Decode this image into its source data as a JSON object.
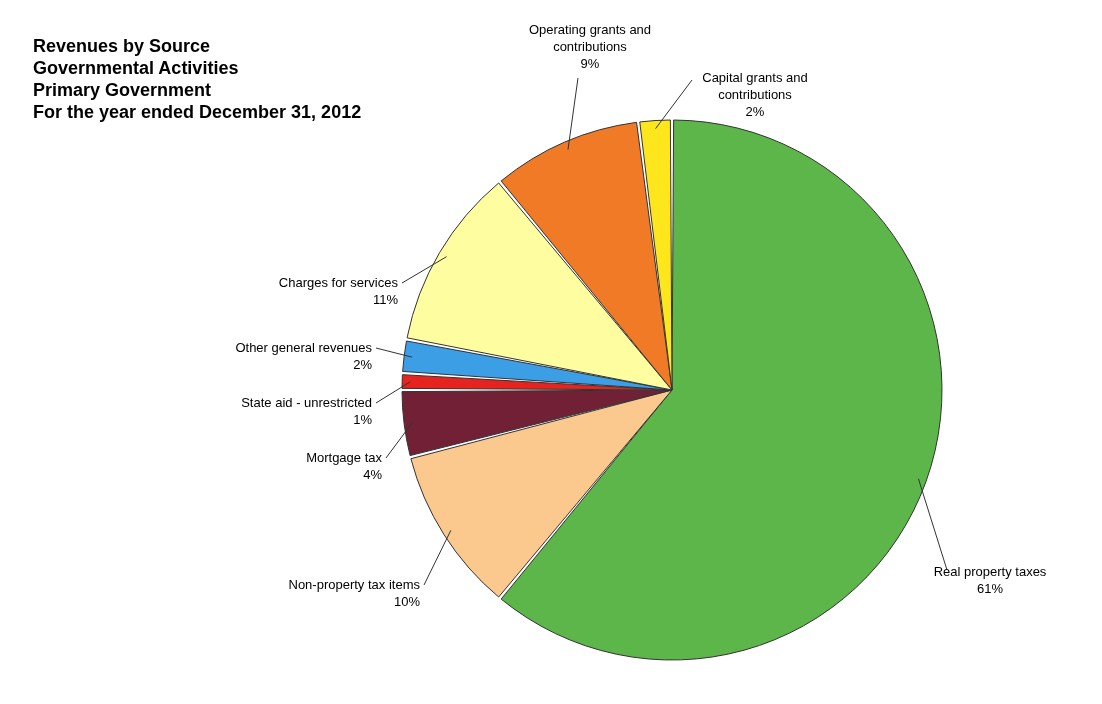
{
  "chart_data": {
    "type": "pie",
    "title": [
      "Revenues by Source",
      "Governmental Activities",
      "Primary Government",
      "For the year ended December 31, 2012"
    ],
    "categories": [
      "Real property taxes",
      "Non-property tax items",
      "Mortgage tax",
      "State aid - unrestricted",
      "Other general revenues",
      "Charges for services",
      "Operating grants and contributions",
      "Capital grants and contributions"
    ],
    "values": [
      61,
      10,
      4,
      1,
      2,
      11,
      9,
      2
    ],
    "value_labels": [
      "61%",
      "10%",
      "4%",
      "1%",
      "2%",
      "11%",
      "9%",
      "2%"
    ],
    "colors": [
      "#5db64a",
      "#fbc88e",
      "#722036",
      "#e5231f",
      "#3c9fe6",
      "#fefea0",
      "#f07a26",
      "#fde61c"
    ]
  }
}
